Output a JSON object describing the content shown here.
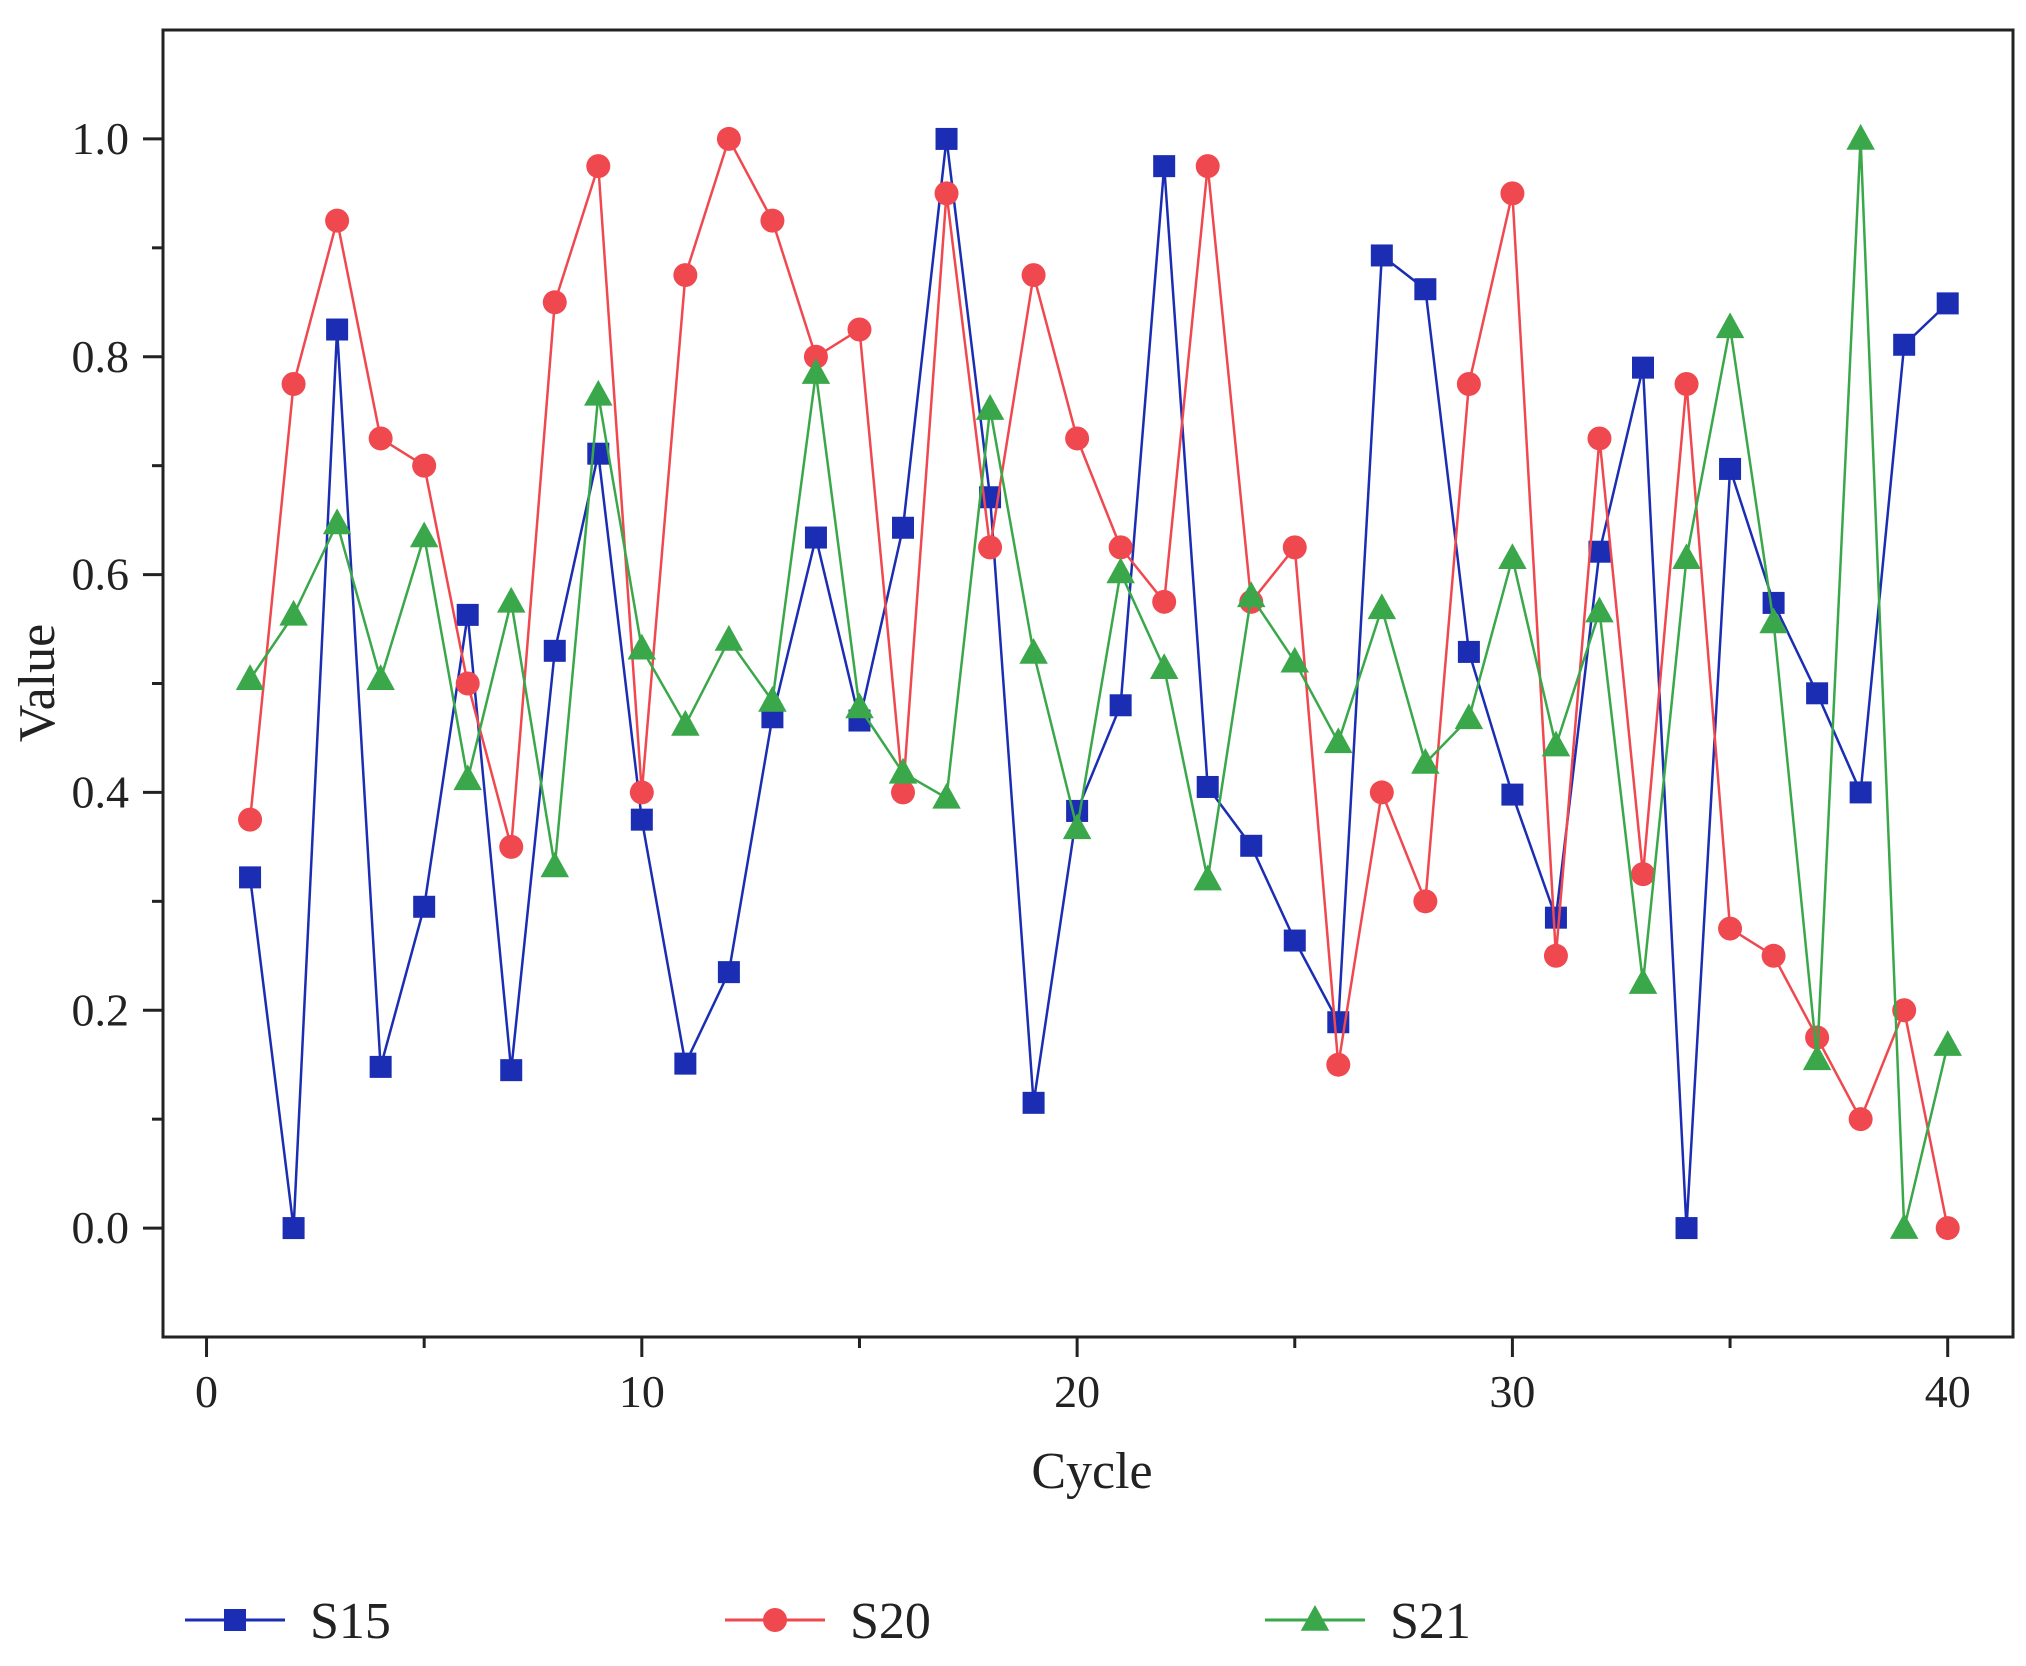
{
  "chart_data": {
    "type": "line",
    "title": "",
    "xlabel": "Cycle",
    "ylabel": "Value",
    "xlim": [
      -1,
      41.5
    ],
    "ylim": [
      -0.1,
      1.1
    ],
    "xticks": [
      0,
      10,
      20,
      30,
      40
    ],
    "xtick_labels": [
      "0",
      "10",
      "20",
      "30",
      "40"
    ],
    "yticks": [
      0.0,
      0.2,
      0.4,
      0.6,
      0.8,
      1.0
    ],
    "ytick_labels": [
      "0.0",
      "0.2",
      "0.4",
      "0.6",
      "0.8",
      "1.0"
    ],
    "grid": false,
    "legend_position": "bottom",
    "x": [
      1,
      2,
      3,
      4,
      5,
      6,
      7,
      8,
      9,
      10,
      11,
      12,
      13,
      14,
      15,
      16,
      17,
      18,
      19,
      20,
      21,
      22,
      23,
      24,
      25,
      26,
      27,
      28,
      29,
      30,
      31,
      32,
      33,
      34,
      35,
      36,
      37,
      38,
      39,
      40
    ],
    "series": [
      {
        "name": "S15",
        "color": "#1a2db3",
        "marker": "square",
        "values": [
          0.322,
          0.0,
          0.825,
          0.148,
          0.295,
          0.563,
          0.145,
          0.53,
          0.711,
          0.375,
          0.151,
          0.235,
          0.469,
          0.634,
          0.466,
          0.643,
          1.0,
          0.671,
          0.115,
          0.383,
          0.48,
          0.975,
          0.405,
          0.351,
          0.264,
          0.189,
          0.893,
          0.862,
          0.529,
          0.398,
          0.285,
          0.621,
          0.79,
          0.0,
          0.697,
          0.574,
          0.491,
          0.4,
          0.811,
          0.849
        ]
      },
      {
        "name": "S20",
        "color": "#f0484f",
        "marker": "circle",
        "values": [
          0.375,
          0.775,
          0.925,
          0.725,
          0.7,
          0.5,
          0.35,
          0.85,
          0.975,
          0.4,
          0.875,
          1.0,
          0.925,
          0.8,
          0.825,
          0.4,
          0.95,
          0.625,
          0.875,
          0.725,
          0.625,
          0.575,
          0.975,
          0.575,
          0.625,
          0.15,
          0.4,
          0.3,
          0.775,
          0.95,
          0.25,
          0.725,
          0.325,
          0.775,
          0.275,
          0.25,
          0.175,
          0.1,
          0.2,
          0.0
        ]
      },
      {
        "name": "S21",
        "color": "#3aa84a",
        "marker": "triangle",
        "values": [
          0.504,
          0.563,
          0.647,
          0.504,
          0.635,
          0.412,
          0.575,
          0.332,
          0.765,
          0.532,
          0.462,
          0.54,
          0.484,
          0.785,
          0.478,
          0.418,
          0.395,
          0.752,
          0.528,
          0.367,
          0.602,
          0.514,
          0.32,
          0.58,
          0.52,
          0.446,
          0.569,
          0.427,
          0.468,
          0.615,
          0.443,
          0.566,
          0.225,
          0.615,
          0.827,
          0.556,
          0.155,
          1.0,
          0.0,
          0.168
        ]
      }
    ]
  }
}
